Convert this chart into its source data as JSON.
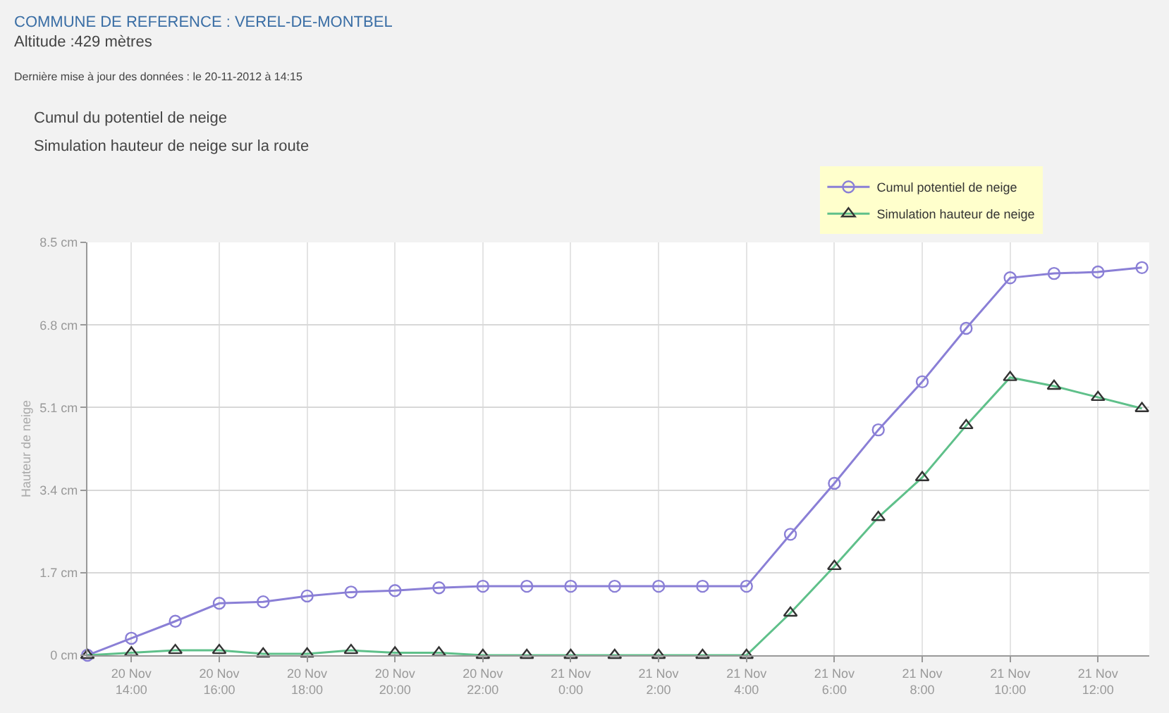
{
  "chart_data": {
    "type": "line",
    "title": "COMMUNE DE REFERENCE : VEREL-DE-MONTBEL",
    "subtitle": "Altitude :429 mètres",
    "annotations": [
      "Dernière mise à jour des données : le 20-11-2012 à 14:15",
      "Cumul du potentiel de neige",
      "Simulation hauteur de neige sur la route"
    ],
    "ylabel": "Hauteur de neige",
    "x": [
      "2012-11-20T13:00",
      "2012-11-20T14:00",
      "2012-11-20T15:00",
      "2012-11-20T16:00",
      "2012-11-20T17:00",
      "2012-11-20T18:00",
      "2012-11-20T19:00",
      "2012-11-20T20:00",
      "2012-11-20T21:00",
      "2012-11-20T22:00",
      "2012-11-20T23:00",
      "2012-11-21T00:00",
      "2012-11-21T01:00",
      "2012-11-21T02:00",
      "2012-11-21T03:00",
      "2012-11-21T04:00",
      "2012-11-21T05:00",
      "2012-11-21T06:00",
      "2012-11-21T07:00",
      "2012-11-21T08:00",
      "2012-11-21T09:00",
      "2012-11-21T10:00",
      "2012-11-21T11:00",
      "2012-11-21T12:00",
      "2012-11-21T13:00"
    ],
    "series": [
      {
        "name": "Cumul potentiel de neige",
        "color": "#8a7fd6",
        "marker": "circle",
        "values": [
          0,
          0.35,
          0.7,
          1.07,
          1.1,
          1.22,
          1.3,
          1.33,
          1.39,
          1.42,
          1.42,
          1.42,
          1.42,
          1.42,
          1.42,
          1.42,
          2.49,
          3.54,
          4.64,
          5.63,
          6.73,
          7.77,
          7.86,
          7.89,
          7.98
        ]
      },
      {
        "name": "Simulation hauteur de neige",
        "color": "#5fc08a",
        "marker": "triangle",
        "values": [
          0,
          0.05,
          0.1,
          0.1,
          0.03,
          0.03,
          0.1,
          0.05,
          0.05,
          0,
          0,
          0,
          0,
          0,
          0,
          0,
          0.87,
          1.83,
          2.84,
          3.66,
          4.73,
          5.72,
          5.54,
          5.31,
          5.08
        ]
      }
    ],
    "xlim": [
      "2012-11-20T13:00",
      "2012-11-21T13:10"
    ],
    "xticks": [
      {
        "value": "2012-11-20T14:00",
        "label": "20 Nov\n14:00"
      },
      {
        "value": "2012-11-20T16:00",
        "label": "20 Nov\n16:00"
      },
      {
        "value": "2012-11-20T18:00",
        "label": "20 Nov\n18:00"
      },
      {
        "value": "2012-11-20T20:00",
        "label": "20 Nov\n20:00"
      },
      {
        "value": "2012-11-20T22:00",
        "label": "20 Nov\n22:00"
      },
      {
        "value": "2012-11-21T00:00",
        "label": "21 Nov\n0:00"
      },
      {
        "value": "2012-11-21T02:00",
        "label": "21 Nov\n2:00"
      },
      {
        "value": "2012-11-21T04:00",
        "label": "21 Nov\n4:00"
      },
      {
        "value": "2012-11-21T06:00",
        "label": "21 Nov\n6:00"
      },
      {
        "value": "2012-11-21T08:00",
        "label": "21 Nov\n8:00"
      },
      {
        "value": "2012-11-21T10:00",
        "label": "21 Nov\n10:00"
      },
      {
        "value": "2012-11-21T12:00",
        "label": "21 Nov\n12:00"
      }
    ],
    "ylim": [
      0,
      8.5
    ],
    "yticks": [
      {
        "value": 0,
        "label": "0 cm"
      },
      {
        "value": 1.7,
        "label": "1.7 cm"
      },
      {
        "value": 3.4,
        "label": "3.4 cm"
      },
      {
        "value": 5.1,
        "label": "5.1 cm"
      },
      {
        "value": 6.8,
        "label": "6.8 cm"
      },
      {
        "value": 8.5,
        "label": "8.5 cm"
      }
    ],
    "grid": true,
    "legend": "top right",
    "line_style": "solid"
  }
}
